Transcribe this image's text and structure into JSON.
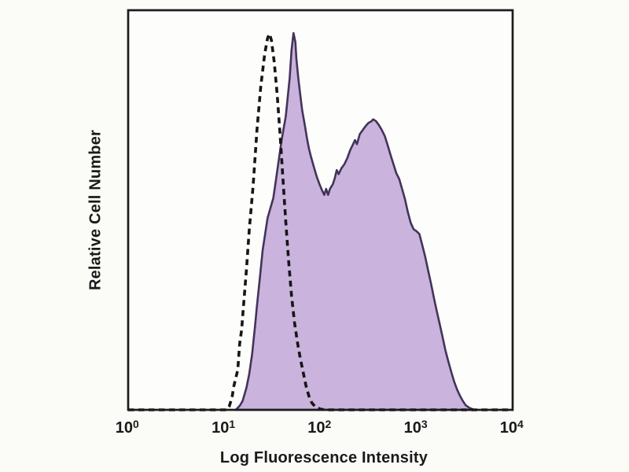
{
  "figure": {
    "background": "#fbfbf8",
    "plot_background": "#fdfdfc",
    "axis_color": "#1c1c1c",
    "text_color": "#1a1a1a"
  },
  "chart_data": {
    "type": "area",
    "chart_kind": "flow-cytometry-overlay-histogram",
    "title": "",
    "xlabel": "Log Fluorescence Intensity",
    "ylabel": "Relative Cell Number",
    "x_scale": "log10",
    "xlim_log10": [
      0,
      4
    ],
    "ylim": [
      0,
      1
    ],
    "grid": false,
    "legend_position": "none",
    "x_tick_positions_log10": [
      0,
      1,
      2,
      3,
      4
    ],
    "x_ticks": [
      {
        "base": "10",
        "exp": "0"
      },
      {
        "base": "10",
        "exp": "1"
      },
      {
        "base": "10",
        "exp": "2"
      },
      {
        "base": "10",
        "exp": "3"
      },
      {
        "base": "10",
        "exp": "4"
      }
    ],
    "series": [
      {
        "name": "stained_filled",
        "line_style": "solid",
        "stroke": "#423459",
        "stroke_width": 2.6,
        "fill": "#cab3dc",
        "peaks_log10": [
          1.72,
          2.55
        ],
        "points": [
          [
            1.12,
            0.0
          ],
          [
            1.16,
            0.01
          ],
          [
            1.19,
            0.022
          ],
          [
            1.23,
            0.055
          ],
          [
            1.26,
            0.09
          ],
          [
            1.29,
            0.14
          ],
          [
            1.32,
            0.21
          ],
          [
            1.34,
            0.26
          ],
          [
            1.37,
            0.33
          ],
          [
            1.4,
            0.4
          ],
          [
            1.45,
            0.48
          ],
          [
            1.51,
            0.53
          ],
          [
            1.54,
            0.58
          ],
          [
            1.57,
            0.63
          ],
          [
            1.6,
            0.68
          ],
          [
            1.64,
            0.735
          ],
          [
            1.68,
            0.83
          ],
          [
            1.7,
            0.9
          ],
          [
            1.72,
            0.943
          ],
          [
            1.74,
            0.92
          ],
          [
            1.75,
            0.88
          ],
          [
            1.77,
            0.83
          ],
          [
            1.79,
            0.79
          ],
          [
            1.81,
            0.75
          ],
          [
            1.84,
            0.71
          ],
          [
            1.86,
            0.68
          ],
          [
            1.88,
            0.655
          ],
          [
            1.9,
            0.635
          ],
          [
            1.93,
            0.61
          ],
          [
            1.96,
            0.585
          ],
          [
            1.99,
            0.565
          ],
          [
            2.02,
            0.548
          ],
          [
            2.04,
            0.538
          ],
          [
            2.06,
            0.553
          ],
          [
            2.08,
            0.538
          ],
          [
            2.1,
            0.553
          ],
          [
            2.13,
            0.565
          ],
          [
            2.15,
            0.58
          ],
          [
            2.17,
            0.6
          ],
          [
            2.19,
            0.59
          ],
          [
            2.22,
            0.605
          ],
          [
            2.25,
            0.615
          ],
          [
            2.28,
            0.63
          ],
          [
            2.31,
            0.65
          ],
          [
            2.34,
            0.665
          ],
          [
            2.36,
            0.675
          ],
          [
            2.38,
            0.665
          ],
          [
            2.41,
            0.69
          ],
          [
            2.44,
            0.7
          ],
          [
            2.47,
            0.71
          ],
          [
            2.5,
            0.718
          ],
          [
            2.53,
            0.722
          ],
          [
            2.55,
            0.727
          ],
          [
            2.58,
            0.722
          ],
          [
            2.61,
            0.712
          ],
          [
            2.64,
            0.7
          ],
          [
            2.67,
            0.685
          ],
          [
            2.7,
            0.662
          ],
          [
            2.73,
            0.638
          ],
          [
            2.76,
            0.615
          ],
          [
            2.79,
            0.592
          ],
          [
            2.82,
            0.578
          ],
          [
            2.85,
            0.553
          ],
          [
            2.88,
            0.527
          ],
          [
            2.91,
            0.495
          ],
          [
            2.94,
            0.468
          ],
          [
            2.97,
            0.452
          ],
          [
            3.0,
            0.447
          ],
          [
            3.03,
            0.44
          ],
          [
            3.06,
            0.412
          ],
          [
            3.09,
            0.383
          ],
          [
            3.12,
            0.35
          ],
          [
            3.15,
            0.317
          ],
          [
            3.18,
            0.281
          ],
          [
            3.21,
            0.248
          ],
          [
            3.24,
            0.216
          ],
          [
            3.27,
            0.183
          ],
          [
            3.3,
            0.15
          ],
          [
            3.33,
            0.122
          ],
          [
            3.36,
            0.096
          ],
          [
            3.39,
            0.072
          ],
          [
            3.42,
            0.052
          ],
          [
            3.45,
            0.036
          ],
          [
            3.48,
            0.023
          ],
          [
            3.51,
            0.012
          ],
          [
            3.55,
            0.005
          ],
          [
            3.6,
            0.0
          ]
        ]
      },
      {
        "name": "control_dashed",
        "line_style": "dashed",
        "stroke": "#161616",
        "stroke_width": 3.6,
        "fill": "none",
        "peaks_log10": [
          1.47
        ],
        "points": [
          [
            0.0,
            0.0
          ],
          [
            1.02,
            0.0
          ],
          [
            1.05,
            0.008
          ],
          [
            1.08,
            0.03
          ],
          [
            1.1,
            0.06
          ],
          [
            1.14,
            0.1
          ],
          [
            1.16,
            0.165
          ],
          [
            1.18,
            0.2
          ],
          [
            1.2,
            0.26
          ],
          [
            1.23,
            0.35
          ],
          [
            1.26,
            0.45
          ],
          [
            1.3,
            0.56
          ],
          [
            1.34,
            0.7
          ],
          [
            1.38,
            0.81
          ],
          [
            1.42,
            0.89
          ],
          [
            1.45,
            0.93
          ],
          [
            1.47,
            0.941
          ],
          [
            1.49,
            0.925
          ],
          [
            1.52,
            0.87
          ],
          [
            1.55,
            0.79
          ],
          [
            1.58,
            0.69
          ],
          [
            1.61,
            0.58
          ],
          [
            1.64,
            0.47
          ],
          [
            1.67,
            0.37
          ],
          [
            1.7,
            0.285
          ],
          [
            1.73,
            0.22
          ],
          [
            1.76,
            0.17
          ],
          [
            1.79,
            0.13
          ],
          [
            1.82,
            0.095
          ],
          [
            1.85,
            0.06
          ],
          [
            1.88,
            0.035
          ],
          [
            1.91,
            0.018
          ],
          [
            1.95,
            0.007
          ],
          [
            2.0,
            0.002
          ],
          [
            2.05,
            0.0
          ],
          [
            4.0,
            0.0
          ]
        ]
      }
    ]
  }
}
